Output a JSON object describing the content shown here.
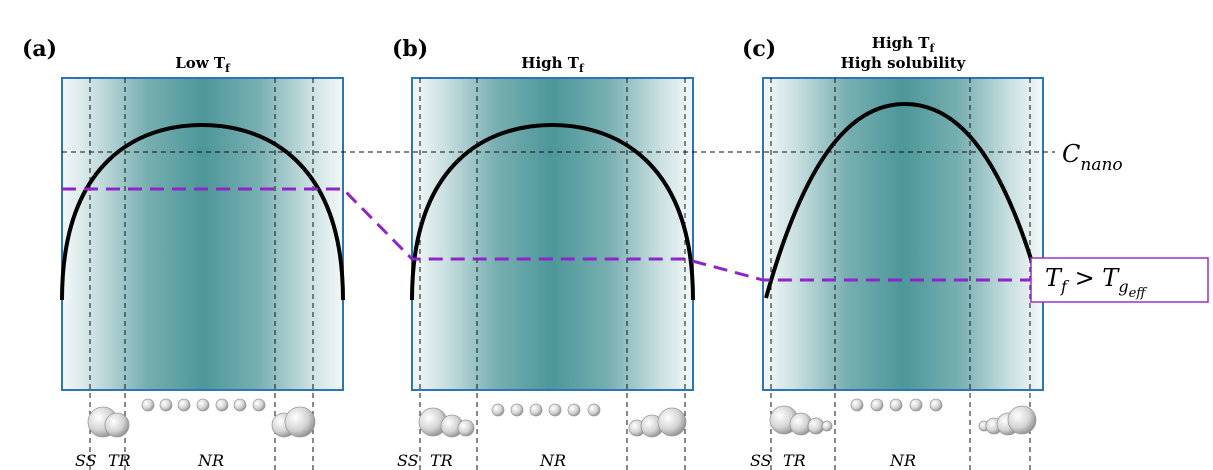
{
  "panels": [
    {
      "label": "(a)",
      "title_lines": [
        [
          "Low T",
          "f"
        ]
      ],
      "zones": [
        "SS",
        "TR",
        "NR"
      ]
    },
    {
      "label": "(b)",
      "title_lines": [
        [
          "High T",
          "f"
        ]
      ],
      "zones": [
        "SS",
        "TR",
        "NR"
      ]
    },
    {
      "label": "(c)",
      "title_lines": [
        [
          "High T",
          "f"
        ],
        [
          "High solubility"
        ]
      ],
      "zones": [
        "SS",
        "TR",
        "NR"
      ]
    }
  ],
  "annotations": {
    "c_nano": [
      "C",
      "nano"
    ],
    "condition": [
      "T",
      "f",
      " > T",
      "g",
      "eff"
    ]
  }
}
